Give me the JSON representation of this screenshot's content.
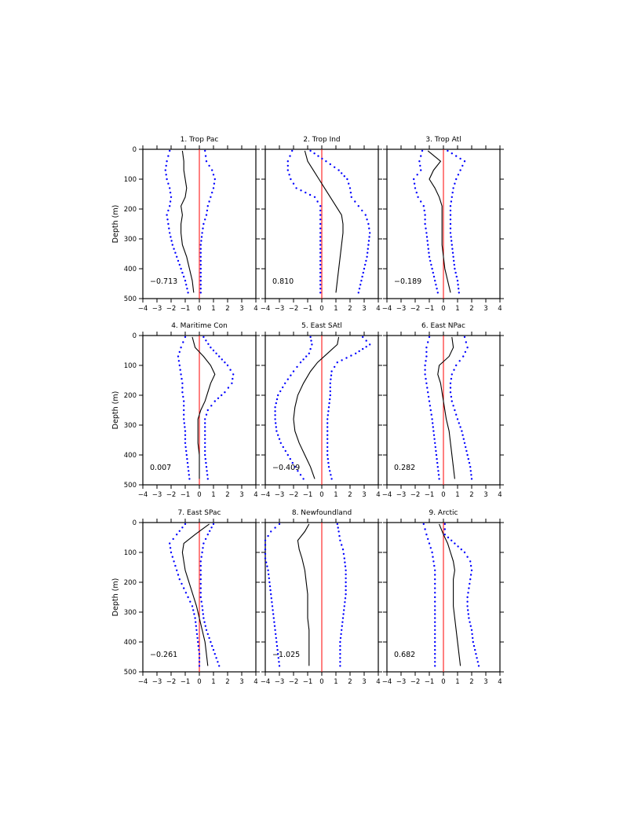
{
  "figure": {
    "ylabel": "Depth (m)",
    "xticks": [
      -4,
      -3,
      -2,
      -1,
      0,
      1,
      2,
      3,
      4
    ],
    "yticks": [
      0,
      100,
      200,
      300,
      400,
      500
    ],
    "xlim": [
      -4,
      4
    ],
    "ylim": [
      0,
      500
    ],
    "colors": {
      "mean": "#000000",
      "bounds": "#0000ff",
      "zero_line": "#ff0000"
    }
  },
  "chart_data": [
    {
      "type": "line",
      "title": "1. Trop Pac",
      "value_label": "-0.713",
      "xlim": [
        -4,
        4
      ],
      "ylim": [
        500,
        0
      ],
      "yaxis_label": "Depth (m)",
      "depth": [
        5,
        40,
        70,
        100,
        130,
        160,
        190,
        220,
        250,
        280,
        320,
        360,
        400,
        440,
        480
      ],
      "series": [
        {
          "role": "mean",
          "values": [
            -1.2,
            -1.1,
            -1.1,
            -1.0,
            -0.9,
            -1.0,
            -1.3,
            -1.2,
            -1.3,
            -1.3,
            -1.2,
            -0.9,
            -0.7,
            -0.5,
            -0.4
          ]
        },
        {
          "role": "lower",
          "values": [
            -2.1,
            -2.3,
            -2.4,
            -2.3,
            -2.1,
            -2.0,
            -2.1,
            -2.3,
            -2.2,
            -2.1,
            -1.9,
            -1.6,
            -1.3,
            -1.0,
            -0.8
          ]
        },
        {
          "role": "upper",
          "values": [
            0.4,
            0.5,
            0.9,
            1.1,
            1.0,
            0.8,
            0.6,
            0.5,
            0.3,
            0.2,
            0.1,
            0.1,
            0.1,
            0.1,
            0.1
          ]
        }
      ]
    },
    {
      "type": "line",
      "title": "2. Trop Ind",
      "value_label": "0.810",
      "xlim": [
        -4,
        4
      ],
      "ylim": [
        500,
        0
      ],
      "depth": [
        5,
        40,
        70,
        100,
        130,
        160,
        190,
        220,
        250,
        280,
        320,
        360,
        400,
        440,
        480
      ],
      "series": [
        {
          "role": "mean",
          "values": [
            -1.2,
            -1.0,
            -0.6,
            -0.2,
            0.2,
            0.6,
            1.0,
            1.4,
            1.5,
            1.5,
            1.4,
            1.3,
            1.2,
            1.1,
            1.0
          ]
        },
        {
          "role": "lower",
          "values": [
            -2.1,
            -2.4,
            -2.4,
            -2.2,
            -1.8,
            -0.5,
            -0.1,
            -0.1,
            -0.1,
            -0.1,
            -0.1,
            -0.1,
            -0.1,
            -0.1,
            -0.1
          ]
        },
        {
          "role": "upper",
          "values": [
            -0.8,
            0.3,
            1.2,
            1.8,
            2.0,
            2.1,
            2.6,
            3.1,
            3.3,
            3.4,
            3.3,
            3.2,
            3.0,
            2.8,
            2.6
          ]
        }
      ]
    },
    {
      "type": "line",
      "title": "3. Trop Atl",
      "value_label": "-0.189",
      "xlim": [
        -4,
        4
      ],
      "ylim": [
        500,
        0
      ],
      "depth": [
        5,
        40,
        70,
        100,
        130,
        160,
        190,
        220,
        250,
        280,
        320,
        360,
        400,
        440,
        480
      ],
      "series": [
        {
          "role": "mean",
          "values": [
            -1.1,
            -0.2,
            -0.7,
            -1.0,
            -0.6,
            -0.3,
            -0.1,
            -0.1,
            -0.1,
            -0.1,
            -0.1,
            0.0,
            0.1,
            0.3,
            0.5
          ]
        },
        {
          "role": "lower",
          "values": [
            -1.5,
            -1.7,
            -1.6,
            -2.1,
            -2.0,
            -1.8,
            -1.4,
            -1.3,
            -1.3,
            -1.2,
            -1.1,
            -1.0,
            -0.8,
            -0.6,
            -0.4
          ]
        },
        {
          "role": "upper",
          "values": [
            0.3,
            1.5,
            1.2,
            0.9,
            0.7,
            0.6,
            0.5,
            0.5,
            0.5,
            0.5,
            0.6,
            0.7,
            0.8,
            1.0,
            1.1
          ]
        }
      ]
    },
    {
      "type": "line",
      "title": "4. Maritime Con",
      "value_label": "0.007",
      "xlim": [
        -4,
        4
      ],
      "ylim": [
        500,
        0
      ],
      "yaxis_label": "Depth (m)",
      "depth": [
        5,
        40,
        70,
        100,
        130,
        160,
        190,
        220,
        250,
        280,
        320,
        360,
        400,
        440,
        480
      ],
      "series": [
        {
          "role": "mean",
          "values": [
            -0.5,
            -0.3,
            0.3,
            0.8,
            1.1,
            0.8,
            0.6,
            0.4,
            0.1,
            -0.1,
            -0.1,
            -0.1,
            0.0,
            0.0,
            0.0
          ]
        },
        {
          "role": "lower",
          "values": [
            -1.0,
            -1.3,
            -1.5,
            -1.4,
            -1.3,
            -1.2,
            -1.2,
            -1.1,
            -1.1,
            -1.1,
            -1.0,
            -1.0,
            -0.9,
            -0.8,
            -0.7
          ]
        },
        {
          "role": "upper",
          "values": [
            0.3,
            0.8,
            1.4,
            2.0,
            2.4,
            2.3,
            1.8,
            1.1,
            0.6,
            0.4,
            0.4,
            0.4,
            0.4,
            0.5,
            0.6
          ]
        }
      ]
    },
    {
      "type": "line",
      "title": "5. East SAtl",
      "value_label": "-0.409",
      "xlim": [
        -4,
        4
      ],
      "ylim": [
        500,
        0
      ],
      "depth": [
        5,
        30,
        60,
        90,
        120,
        160,
        200,
        240,
        280,
        320,
        360,
        400,
        440,
        480
      ],
      "series": [
        {
          "role": "mean",
          "values": [
            1.2,
            1.1,
            0.4,
            -0.3,
            -0.8,
            -1.3,
            -1.7,
            -1.9,
            -2.0,
            -1.9,
            -1.6,
            -1.2,
            -0.8,
            -0.5
          ]
        },
        {
          "role": "lower",
          "values": [
            -0.8,
            -0.7,
            -0.9,
            -1.5,
            -2.0,
            -2.6,
            -3.1,
            -3.3,
            -3.3,
            -3.2,
            -2.9,
            -2.4,
            -1.9,
            -1.3
          ]
        },
        {
          "role": "upper",
          "values": [
            2.9,
            3.4,
            2.4,
            1.1,
            0.7,
            0.6,
            0.6,
            0.5,
            0.4,
            0.4,
            0.4,
            0.4,
            0.5,
            0.7
          ]
        }
      ]
    },
    {
      "type": "line",
      "title": "6. East NPac",
      "value_label": "0.282",
      "xlim": [
        -4,
        4
      ],
      "ylim": [
        500,
        0
      ],
      "depth": [
        5,
        40,
        70,
        100,
        130,
        160,
        190,
        220,
        250,
        280,
        320,
        360,
        400,
        440,
        480
      ],
      "series": [
        {
          "role": "mean",
          "values": [
            0.6,
            0.7,
            0.4,
            -0.3,
            -0.4,
            -0.2,
            -0.1,
            0.0,
            0.1,
            0.2,
            0.4,
            0.5,
            0.6,
            0.7,
            0.8
          ]
        },
        {
          "role": "lower",
          "values": [
            -1.0,
            -1.2,
            -1.2,
            -1.3,
            -1.3,
            -1.2,
            -1.1,
            -1.0,
            -0.9,
            -0.8,
            -0.7,
            -0.6,
            -0.5,
            -0.4,
            -0.3
          ]
        },
        {
          "role": "upper",
          "values": [
            1.5,
            1.7,
            1.4,
            0.9,
            0.6,
            0.5,
            0.5,
            0.6,
            0.8,
            1.0,
            1.3,
            1.5,
            1.7,
            1.9,
            2.0
          ]
        }
      ]
    },
    {
      "type": "line",
      "title": "7. East SPac",
      "value_label": "-0.261",
      "xlim": [
        -4,
        4
      ],
      "ylim": [
        500,
        0
      ],
      "yaxis_label": "Depth (m)",
      "depth": [
        5,
        40,
        70,
        100,
        130,
        160,
        190,
        220,
        250,
        280,
        320,
        360,
        400,
        440,
        480
      ],
      "series": [
        {
          "role": "mean",
          "values": [
            0.7,
            -0.3,
            -1.1,
            -1.2,
            -1.1,
            -1.0,
            -0.8,
            -0.6,
            -0.4,
            -0.2,
            0.0,
            0.2,
            0.4,
            0.5,
            0.6
          ]
        },
        {
          "role": "lower",
          "values": [
            -1.0,
            -1.6,
            -2.1,
            -2.0,
            -1.8,
            -1.6,
            -1.4,
            -1.1,
            -0.8,
            -0.5,
            -0.3,
            -0.2,
            -0.1,
            0.0,
            0.0
          ]
        },
        {
          "role": "upper",
          "values": [
            1.0,
            0.6,
            0.3,
            0.2,
            0.1,
            0.1,
            0.1,
            0.1,
            0.1,
            0.2,
            0.3,
            0.5,
            0.8,
            1.1,
            1.4
          ]
        }
      ]
    },
    {
      "type": "line",
      "title": "8. Newfoundland",
      "value_label": "-1.025",
      "xlim": [
        -4,
        4
      ],
      "ylim": [
        500,
        0
      ],
      "depth": [
        5,
        30,
        60,
        90,
        120,
        160,
        200,
        240,
        280,
        320,
        360,
        400,
        440,
        480
      ],
      "series": [
        {
          "role": "mean",
          "values": [
            -0.9,
            -1.2,
            -1.7,
            -1.6,
            -1.4,
            -1.2,
            -1.1,
            -1.0,
            -1.0,
            -1.0,
            -0.9,
            -0.9,
            -0.9,
            -0.9
          ]
        },
        {
          "role": "lower",
          "values": [
            -3.0,
            -3.6,
            -4.0,
            -4.0,
            -4.0,
            -3.8,
            -3.7,
            -3.6,
            -3.5,
            -3.4,
            -3.3,
            -3.2,
            -3.1,
            -3.0
          ]
        },
        {
          "role": "upper",
          "values": [
            1.1,
            1.2,
            1.3,
            1.5,
            1.6,
            1.7,
            1.7,
            1.7,
            1.6,
            1.5,
            1.4,
            1.3,
            1.3,
            1.3
          ]
        }
      ]
    },
    {
      "type": "line",
      "title": "9. Arctic",
      "value_label": "0.682",
      "xlim": [
        -4,
        4
      ],
      "ylim": [
        500,
        0
      ],
      "depth": [
        5,
        40,
        70,
        100,
        130,
        160,
        190,
        220,
        250,
        280,
        320,
        360,
        400,
        440,
        480
      ],
      "series": [
        {
          "role": "mean",
          "values": [
            -0.3,
            0.0,
            0.3,
            0.5,
            0.7,
            0.8,
            0.7,
            0.7,
            0.7,
            0.7,
            0.8,
            0.9,
            1.0,
            1.1,
            1.2
          ]
        },
        {
          "role": "lower",
          "values": [
            -1.4,
            -1.2,
            -1.0,
            -0.8,
            -0.7,
            -0.6,
            -0.6,
            -0.6,
            -0.6,
            -0.6,
            -0.6,
            -0.6,
            -0.6,
            -0.6,
            -0.6
          ]
        },
        {
          "role": "upper",
          "values": [
            0.1,
            0.1,
            0.8,
            1.5,
            1.9,
            2.0,
            1.9,
            1.8,
            1.7,
            1.7,
            1.8,
            2.0,
            2.1,
            2.3,
            2.5
          ]
        }
      ]
    }
  ]
}
